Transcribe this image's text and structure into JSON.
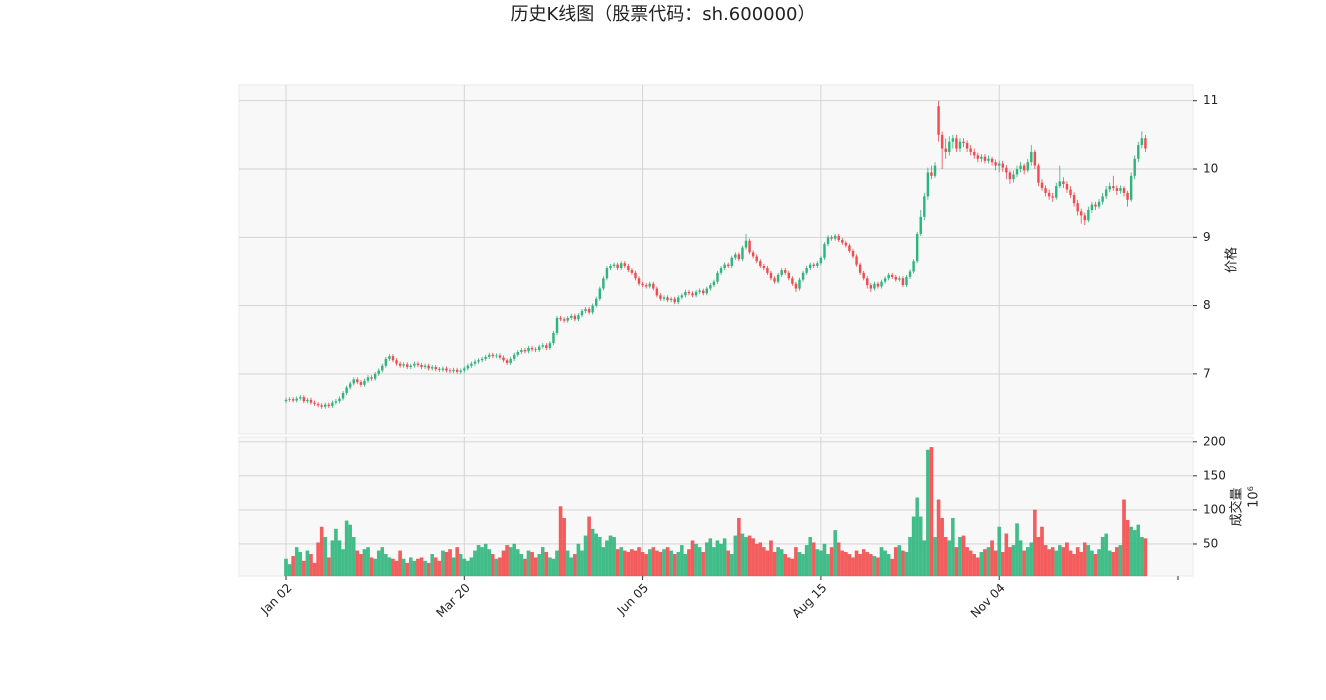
{
  "chart_data": {
    "type": "candlestick",
    "title": "历史K线图（股票代码：sh.600000）",
    "ylabel": "价格",
    "volume_ylabel": "成交量",
    "volume_offset_label": "10⁶",
    "up_color": "#2db67c",
    "down_color": "#f24b4b",
    "grid": true,
    "ylim": [
      6.12,
      11.23
    ],
    "yticks": [
      7,
      8,
      9,
      10,
      11
    ],
    "volume_ylim": [
      3,
      207
    ],
    "volume_yticks": [
      50,
      100,
      150,
      200
    ],
    "categories": [
      "Jan 02",
      null,
      null,
      null,
      null,
      null,
      null,
      null,
      null,
      null,
      null,
      null,
      null,
      null,
      null,
      null,
      null,
      null,
      null,
      null,
      null,
      null,
      null,
      null,
      null,
      null,
      null,
      null,
      null,
      null,
      null,
      null,
      null,
      null,
      null,
      null,
      null,
      null,
      null,
      null,
      null,
      null,
      null,
      null,
      null,
      null,
      null,
      null,
      null,
      null,
      "Mar 20",
      null,
      null,
      null,
      null,
      null,
      null,
      null,
      null,
      null,
      null,
      null,
      null,
      null,
      null,
      null,
      null,
      null,
      null,
      null,
      null,
      null,
      null,
      null,
      null,
      null,
      null,
      null,
      null,
      null,
      null,
      null,
      null,
      null,
      null,
      null,
      null,
      null,
      null,
      null,
      null,
      null,
      null,
      null,
      null,
      null,
      null,
      null,
      null,
      null,
      "Jun 05",
      null,
      null,
      null,
      null,
      null,
      null,
      null,
      null,
      null,
      null,
      null,
      null,
      null,
      null,
      null,
      null,
      null,
      null,
      null,
      null,
      null,
      null,
      null,
      null,
      null,
      null,
      null,
      null,
      null,
      null,
      null,
      null,
      null,
      null,
      null,
      null,
      null,
      null,
      null,
      null,
      null,
      null,
      null,
      null,
      null,
      null,
      null,
      null,
      null,
      "Aug 15",
      null,
      null,
      null,
      null,
      null,
      null,
      null,
      null,
      null,
      null,
      null,
      null,
      null,
      null,
      null,
      null,
      null,
      null,
      null,
      null,
      null,
      null,
      null,
      null,
      null,
      null,
      null,
      null,
      null,
      null,
      null,
      null,
      null,
      null,
      null,
      null,
      null,
      null,
      null,
      null,
      null,
      null,
      null,
      null,
      null,
      null,
      null,
      null,
      null,
      "Nov 04",
      null,
      null,
      null,
      null,
      null,
      null,
      null,
      null,
      null,
      null,
      null,
      null,
      null,
      null,
      null,
      null,
      null,
      null,
      null,
      null,
      null,
      null,
      null,
      null,
      null,
      null,
      null,
      null,
      null,
      null,
      null,
      null,
      null,
      null,
      null,
      null,
      null,
      null,
      null,
      null,
      null
    ],
    "open": [
      6.6,
      6.62,
      6.63,
      6.61,
      6.64,
      6.66,
      6.6,
      6.62,
      6.58,
      6.56,
      6.54,
      6.52,
      6.55,
      6.53,
      6.58,
      6.6,
      6.64,
      6.72,
      6.8,
      6.86,
      6.92,
      6.88,
      6.84,
      6.9,
      6.95,
      6.93,
      7.0,
      7.05,
      7.12,
      7.22,
      7.26,
      7.2,
      7.15,
      7.12,
      7.14,
      7.1,
      7.12,
      7.15,
      7.13,
      7.1,
      7.12,
      7.08,
      7.1,
      7.07,
      7.06,
      7.08,
      7.05,
      7.04,
      7.06,
      7.03,
      7.05,
      7.08,
      7.12,
      7.15,
      7.18,
      7.2,
      7.22,
      7.25,
      7.28,
      7.26,
      7.27,
      7.24,
      7.2,
      7.16,
      7.22,
      7.28,
      7.32,
      7.35,
      7.33,
      7.38,
      7.36,
      7.35,
      7.4,
      7.42,
      7.38,
      7.45,
      7.6,
      7.82,
      7.8,
      7.78,
      7.82,
      7.85,
      7.8,
      7.86,
      7.92,
      7.95,
      7.9,
      8.0,
      8.1,
      8.25,
      8.4,
      8.55,
      8.58,
      8.6,
      8.55,
      8.62,
      8.58,
      8.52,
      8.48,
      8.4,
      8.32,
      8.3,
      8.28,
      8.32,
      8.25,
      8.15,
      8.1,
      8.12,
      8.08,
      8.1,
      8.05,
      8.12,
      8.15,
      8.2,
      8.18,
      8.15,
      8.2,
      8.22,
      8.18,
      8.25,
      8.3,
      8.35,
      8.48,
      8.55,
      8.6,
      8.58,
      8.7,
      8.75,
      8.68,
      8.85,
      8.95,
      8.78,
      8.72,
      8.65,
      8.58,
      8.55,
      8.48,
      8.4,
      8.35,
      8.45,
      8.52,
      8.48,
      8.4,
      8.32,
      8.25,
      8.38,
      8.48,
      8.55,
      8.6,
      8.58,
      8.62,
      8.7,
      8.9,
      9.0,
      8.98,
      9.02,
      8.96,
      8.92,
      8.88,
      8.8,
      8.72,
      8.6,
      8.48,
      8.4,
      8.3,
      8.25,
      8.32,
      8.28,
      8.35,
      8.4,
      8.45,
      8.42,
      8.38,
      8.4,
      8.3,
      8.42,
      8.5,
      8.65,
      9.05,
      9.3,
      9.6,
      9.95,
      9.9,
      10.92,
      10.5,
      10.3,
      10.25,
      10.4,
      10.45,
      10.3,
      10.4,
      10.38,
      10.3,
      10.25,
      10.2,
      10.15,
      10.18,
      10.12,
      10.15,
      10.1,
      10.05,
      10.08,
      10.02,
      9.95,
      9.85,
      9.92,
      10.0,
      10.05,
      9.98,
      10.1,
      10.25,
      10.05,
      9.8,
      9.72,
      9.65,
      9.6,
      9.58,
      9.75,
      9.82,
      9.78,
      9.7,
      9.62,
      9.5,
      9.38,
      9.32,
      9.25,
      9.4,
      9.48,
      9.45,
      9.52,
      9.6,
      9.7,
      9.75,
      9.72,
      9.68,
      9.72,
      9.65,
      9.55,
      9.9,
      10.15,
      10.35,
      10.45
    ],
    "high": [
      6.65,
      6.66,
      6.66,
      6.67,
      6.69,
      6.69,
      6.65,
      6.65,
      6.61,
      6.59,
      6.57,
      6.58,
      6.58,
      6.61,
      6.63,
      6.67,
      6.75,
      6.83,
      6.89,
      6.95,
      6.95,
      6.91,
      6.93,
      6.98,
      6.98,
      7.03,
      7.08,
      7.15,
      7.25,
      7.29,
      7.29,
      7.23,
      7.18,
      7.17,
      7.17,
      7.15,
      7.18,
      7.18,
      7.16,
      7.15,
      7.15,
      7.13,
      7.13,
      7.1,
      7.11,
      7.11,
      7.08,
      7.09,
      7.09,
      7.08,
      7.11,
      7.15,
      7.18,
      7.21,
      7.23,
      7.25,
      7.28,
      7.31,
      7.31,
      7.3,
      7.3,
      7.27,
      7.23,
      7.25,
      7.31,
      7.35,
      7.38,
      7.38,
      7.41,
      7.41,
      7.39,
      7.43,
      7.45,
      7.45,
      7.48,
      7.63,
      7.85,
      7.85,
      7.83,
      7.85,
      7.88,
      7.88,
      7.89,
      7.95,
      7.98,
      7.98,
      8.03,
      8.13,
      8.28,
      8.43,
      8.58,
      8.61,
      8.63,
      8.63,
      8.65,
      8.65,
      8.61,
      8.55,
      8.51,
      8.43,
      8.35,
      8.33,
      8.35,
      8.35,
      8.28,
      8.18,
      8.15,
      8.15,
      8.13,
      8.13,
      8.15,
      8.18,
      8.23,
      8.23,
      8.21,
      8.23,
      8.25,
      8.25,
      8.28,
      8.33,
      8.38,
      8.51,
      8.58,
      8.63,
      8.63,
      8.73,
      8.78,
      8.78,
      8.88,
      9.05,
      8.98,
      8.81,
      8.75,
      8.68,
      8.61,
      8.58,
      8.51,
      8.43,
      8.48,
      8.55,
      8.55,
      8.51,
      8.43,
      8.35,
      8.41,
      8.51,
      8.58,
      8.63,
      8.63,
      8.65,
      8.73,
      8.93,
      9.03,
      9.03,
      9.05,
      9.05,
      8.99,
      8.95,
      8.91,
      8.83,
      8.75,
      8.63,
      8.51,
      8.43,
      8.33,
      8.35,
      8.35,
      8.38,
      8.43,
      8.48,
      8.48,
      8.45,
      8.43,
      8.43,
      8.45,
      8.53,
      8.68,
      9.08,
      9.4,
      9.65,
      10.02,
      10.05,
      10.1,
      11.0,
      10.55,
      10.45,
      10.48,
      10.5,
      10.5,
      10.45,
      10.45,
      10.42,
      10.35,
      10.3,
      10.24,
      10.22,
      10.22,
      10.2,
      10.18,
      10.14,
      10.12,
      10.12,
      10.06,
      9.98,
      9.98,
      10.05,
      10.1,
      10.08,
      10.15,
      10.35,
      10.28,
      10.08,
      9.85,
      9.76,
      9.7,
      9.65,
      9.8,
      10.05,
      9.88,
      9.82,
      9.75,
      9.66,
      9.55,
      9.42,
      9.36,
      9.45,
      9.52,
      9.52,
      9.56,
      9.65,
      9.75,
      9.8,
      9.9,
      9.76,
      9.76,
      9.75,
      9.68,
      9.95,
      10.2,
      10.4,
      10.55,
      10.5
    ],
    "low": [
      6.57,
      6.59,
      6.58,
      6.58,
      6.61,
      6.57,
      6.57,
      6.55,
      6.53,
      6.51,
      6.49,
      6.49,
      6.5,
      6.5,
      6.55,
      6.57,
      6.61,
      6.69,
      6.77,
      6.83,
      6.85,
      6.81,
      6.81,
      6.87,
      6.9,
      6.9,
      6.97,
      7.02,
      7.09,
      7.19,
      7.17,
      7.12,
      7.09,
      7.09,
      7.07,
      7.07,
      7.09,
      7.1,
      7.07,
      7.07,
      7.05,
      7.05,
      7.04,
      7.03,
      7.03,
      7.02,
      7.01,
      7.01,
      7.0,
      7.0,
      7.02,
      7.05,
      7.09,
      7.12,
      7.15,
      7.17,
      7.19,
      7.22,
      7.23,
      7.23,
      7.21,
      7.17,
      7.13,
      7.13,
      7.19,
      7.25,
      7.29,
      7.3,
      7.3,
      7.33,
      7.32,
      7.32,
      7.37,
      7.35,
      7.35,
      7.42,
      7.57,
      7.77,
      7.75,
      7.75,
      7.79,
      7.77,
      7.77,
      7.83,
      7.89,
      7.87,
      7.87,
      7.97,
      8.07,
      8.22,
      8.37,
      8.52,
      8.55,
      8.52,
      8.52,
      8.55,
      8.49,
      8.45,
      8.37,
      8.29,
      8.27,
      8.25,
      8.25,
      8.22,
      8.12,
      8.07,
      8.07,
      8.05,
      8.05,
      8.02,
      8.02,
      8.09,
      8.12,
      8.15,
      8.12,
      8.12,
      8.17,
      8.15,
      8.15,
      8.22,
      8.27,
      8.32,
      8.45,
      8.52,
      8.55,
      8.55,
      8.67,
      8.65,
      8.65,
      8.82,
      8.75,
      8.69,
      8.62,
      8.55,
      8.52,
      8.45,
      8.37,
      8.32,
      8.32,
      8.42,
      8.45,
      8.37,
      8.29,
      8.2,
      8.22,
      8.35,
      8.45,
      8.52,
      8.55,
      8.55,
      8.59,
      8.67,
      8.87,
      8.95,
      8.95,
      8.93,
      8.89,
      8.85,
      8.77,
      8.69,
      8.57,
      8.45,
      8.37,
      8.25,
      8.2,
      8.22,
      8.25,
      8.25,
      8.32,
      8.37,
      8.39,
      8.35,
      8.35,
      8.27,
      8.27,
      8.39,
      8.47,
      8.62,
      9.02,
      9.25,
      9.55,
      9.85,
      9.87,
      10.4,
      10.0,
      10.15,
      10.2,
      10.3,
      10.25,
      10.25,
      10.32,
      10.25,
      10.2,
      10.15,
      10.1,
      10.1,
      10.08,
      10.08,
      10.05,
      9.98,
      9.95,
      9.96,
      9.85,
      9.78,
      9.8,
      9.88,
      9.95,
      9.92,
      9.95,
      10.05,
      10.0,
      9.75,
      9.68,
      9.6,
      9.55,
      9.52,
      9.55,
      9.72,
      9.72,
      9.65,
      9.58,
      9.45,
      9.32,
      9.2,
      9.18,
      9.22,
      9.36,
      9.4,
      9.42,
      9.48,
      9.56,
      9.66,
      9.68,
      9.62,
      9.64,
      9.6,
      9.45,
      9.52,
      9.85,
      10.1,
      10.3,
      10.25
    ],
    "close": [
      6.62,
      6.63,
      6.61,
      6.64,
      6.66,
      6.6,
      6.62,
      6.58,
      6.56,
      6.54,
      6.52,
      6.55,
      6.53,
      6.58,
      6.6,
      6.64,
      6.72,
      6.8,
      6.86,
      6.92,
      6.88,
      6.84,
      6.9,
      6.95,
      6.93,
      7.0,
      7.05,
      7.12,
      7.22,
      7.26,
      7.2,
      7.15,
      7.12,
      7.14,
      7.1,
      7.12,
      7.15,
      7.13,
      7.1,
      7.12,
      7.08,
      7.1,
      7.07,
      7.06,
      7.08,
      7.05,
      7.04,
      7.06,
      7.03,
      7.05,
      7.08,
      7.12,
      7.15,
      7.18,
      7.2,
      7.22,
      7.25,
      7.28,
      7.26,
      7.27,
      7.24,
      7.2,
      7.16,
      7.22,
      7.28,
      7.32,
      7.35,
      7.33,
      7.38,
      7.36,
      7.35,
      7.4,
      7.42,
      7.38,
      7.45,
      7.6,
      7.82,
      7.8,
      7.78,
      7.82,
      7.85,
      7.8,
      7.86,
      7.92,
      7.95,
      7.9,
      8.0,
      8.1,
      8.25,
      8.4,
      8.55,
      8.58,
      8.6,
      8.55,
      8.62,
      8.58,
      8.52,
      8.48,
      8.4,
      8.32,
      8.3,
      8.28,
      8.32,
      8.25,
      8.15,
      8.1,
      8.12,
      8.08,
      8.1,
      8.05,
      8.12,
      8.15,
      8.2,
      8.18,
      8.15,
      8.2,
      8.22,
      8.18,
      8.25,
      8.3,
      8.35,
      8.48,
      8.55,
      8.6,
      8.58,
      8.7,
      8.75,
      8.68,
      8.85,
      8.95,
      8.78,
      8.72,
      8.65,
      8.58,
      8.55,
      8.48,
      8.4,
      8.35,
      8.45,
      8.52,
      8.48,
      8.4,
      8.32,
      8.25,
      8.38,
      8.48,
      8.55,
      8.6,
      8.58,
      8.62,
      8.7,
      8.9,
      9.0,
      8.98,
      9.02,
      8.96,
      8.92,
      8.88,
      8.8,
      8.72,
      8.6,
      8.48,
      8.4,
      8.3,
      8.25,
      8.32,
      8.28,
      8.35,
      8.4,
      8.45,
      8.42,
      8.38,
      8.4,
      8.3,
      8.42,
      8.5,
      8.65,
      9.05,
      9.3,
      9.6,
      9.95,
      9.9,
      10.05,
      10.5,
      10.3,
      10.25,
      10.4,
      10.45,
      10.3,
      10.4,
      10.38,
      10.3,
      10.25,
      10.2,
      10.15,
      10.18,
      10.12,
      10.15,
      10.1,
      10.05,
      10.08,
      10.02,
      9.95,
      9.85,
      9.92,
      10.0,
      10.05,
      9.98,
      10.1,
      10.25,
      10.05,
      9.8,
      9.72,
      9.65,
      9.6,
      9.58,
      9.75,
      9.82,
      9.78,
      9.7,
      9.62,
      9.5,
      9.38,
      9.32,
      9.25,
      9.4,
      9.48,
      9.45,
      9.52,
      9.6,
      9.7,
      9.75,
      9.72,
      9.68,
      9.72,
      9.65,
      9.55,
      9.9,
      10.15,
      10.35,
      10.45,
      10.3
    ],
    "volume": [
      28,
      20,
      32,
      45,
      38,
      25,
      40,
      35,
      22,
      52,
      75,
      60,
      30,
      55,
      72,
      55,
      42,
      84,
      78,
      60,
      40,
      35,
      42,
      45,
      30,
      28,
      40,
      45,
      35,
      30,
      28,
      25,
      40,
      28,
      22,
      30,
      25,
      28,
      30,
      25,
      22,
      35,
      30,
      25,
      40,
      38,
      42,
      30,
      45,
      35,
      28,
      25,
      30,
      40,
      48,
      45,
      50,
      42,
      35,
      28,
      30,
      40,
      48,
      45,
      50,
      42,
      35,
      28,
      40,
      38,
      30,
      35,
      45,
      38,
      30,
      28,
      40,
      105,
      88,
      40,
      30,
      35,
      50,
      40,
      62,
      90,
      72,
      65,
      60,
      45,
      55,
      62,
      60,
      42,
      45,
      40,
      38,
      42,
      40,
      45,
      38,
      35,
      42,
      45,
      40,
      38,
      42,
      45,
      40,
      35,
      38,
      48,
      35,
      42,
      55,
      50,
      45,
      38,
      52,
      58,
      45,
      55,
      50,
      58,
      40,
      35,
      62,
      88,
      65,
      60,
      62,
      58,
      50,
      52,
      45,
      40,
      55,
      38,
      45,
      42,
      35,
      30,
      28,
      45,
      38,
      35,
      48,
      60,
      52,
      42,
      40,
      50,
      35,
      45,
      70,
      52,
      40,
      38,
      35,
      30,
      40,
      35,
      42,
      38,
      35,
      32,
      30,
      45,
      40,
      35,
      28,
      45,
      48,
      40,
      38,
      60,
      90,
      118,
      90,
      55,
      188,
      192,
      60,
      115,
      88,
      60,
      55,
      88,
      45,
      60,
      62,
      45,
      40,
      35,
      30,
      38,
      42,
      45,
      55,
      40,
      75,
      38,
      65,
      45,
      48,
      80,
      55,
      40,
      45,
      52,
      100,
      60,
      75,
      48,
      42,
      45,
      40,
      48,
      45,
      52,
      40,
      35,
      45,
      38,
      52,
      48,
      40,
      35,
      42,
      60,
      65,
      40,
      38,
      45,
      48,
      115,
      85,
      75,
      70,
      78,
      60,
      58
    ]
  }
}
